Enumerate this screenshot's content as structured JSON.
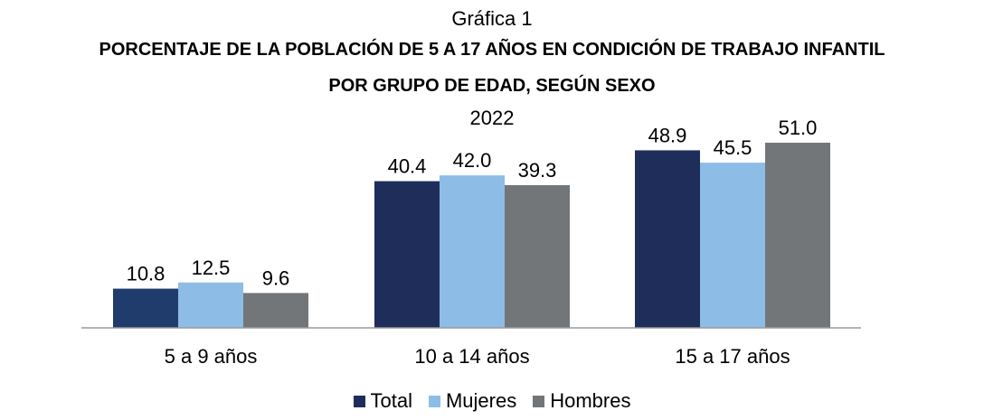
{
  "chart_data": {
    "type": "bar",
    "graph_label": "Gráfica 1",
    "title_line1": "PORCENTAJE DE LA POBLACIÓN DE 5 A 17 AÑOS EN CONDICIÓN DE TRABAJO INFANTIL",
    "title_line2": "POR GRUPO DE EDAD, SEGÚN SEXO",
    "subtitle": "2022",
    "categories": [
      "5 a 9 años",
      "10 a 14 años",
      "15 a 17 años"
    ],
    "series": [
      {
        "name": "Total",
        "values": [
          10.8,
          40.4,
          48.9
        ],
        "color": "#1f2d5a"
      },
      {
        "name": "Mujeres",
        "values": [
          12.5,
          42.0,
          45.5
        ],
        "color": "#8dbde6"
      },
      {
        "name": "Hombres",
        "values": [
          9.6,
          39.3,
          51.0
        ],
        "color": "#737678"
      }
    ],
    "first_bar_color": "#1f3c6c",
    "ylim": [
      0,
      60
    ],
    "grid": false,
    "legend_position": "bottom"
  }
}
